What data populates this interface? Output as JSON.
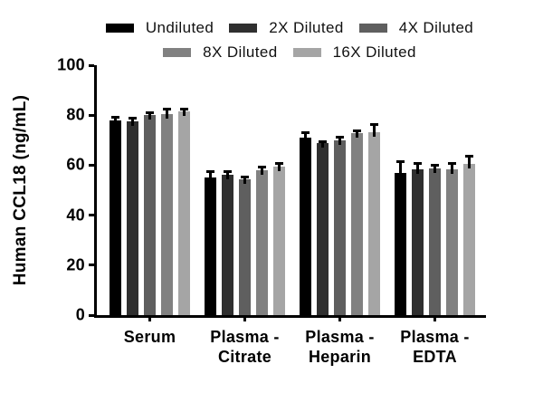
{
  "chart_data": {
    "type": "bar",
    "title": "",
    "ylabel": "Human CCL18 (ng/mL)",
    "xlabel": "",
    "ylim": [
      0,
      100
    ],
    "yticks": [
      0,
      20,
      40,
      60,
      80,
      100
    ],
    "grid": false,
    "legend_position": "top",
    "legend_rows": [
      [
        "Undiluted",
        "2X Diluted",
        "4X Diluted"
      ],
      [
        "8X Diluted",
        "16X Diluted"
      ]
    ],
    "error_bars": "upper SD whiskers with caps, black",
    "categories": [
      "Serum",
      "Plasma - Citrate",
      "Plasma - Heparin",
      "Plasma - EDTA"
    ],
    "category_lines": [
      [
        "Serum"
      ],
      [
        "Plasma -",
        "Citrate"
      ],
      [
        "Plasma -",
        "Heparin"
      ],
      [
        "Plasma -",
        "EDTA"
      ]
    ],
    "series": [
      {
        "name": "Undiluted",
        "color": "#000000",
        "values": [
          78.0,
          55.2,
          71.2,
          57.0
        ],
        "errors": [
          1.2,
          2.1,
          1.9,
          4.5
        ]
      },
      {
        "name": "2X Diluted",
        "color": "#2f2f2f",
        "values": [
          77.6,
          56.1,
          68.7,
          58.4
        ],
        "errors": [
          1.2,
          1.5,
          0.8,
          2.2
        ]
      },
      {
        "name": "4X Diluted",
        "color": "#5f5f5f",
        "values": [
          80.0,
          54.2,
          69.9,
          58.8
        ],
        "errors": [
          1.1,
          1.2,
          1.3,
          1.0
        ]
      },
      {
        "name": "8X Diluted",
        "color": "#818181",
        "values": [
          80.6,
          57.8,
          72.7,
          58.4
        ],
        "errors": [
          1.7,
          1.6,
          0.9,
          2.4
        ]
      },
      {
        "name": "16X Diluted",
        "color": "#a5a5a5",
        "values": [
          81.5,
          59.4,
          73.1,
          60.6
        ],
        "errors": [
          1.1,
          1.2,
          3.3,
          3.0
        ]
      }
    ]
  }
}
